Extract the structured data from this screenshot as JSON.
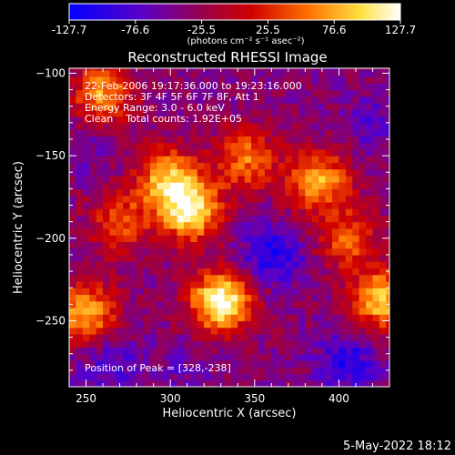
{
  "chart_data": {
    "type": "heatmap",
    "title": "Reconstructed RHESSI Image",
    "xlabel": "Heliocentric X (arcsec)",
    "ylabel": "Heliocentric Y (arcsec)",
    "xlim": [
      240,
      430
    ],
    "ylim": [
      -290,
      -97
    ],
    "xticks": [
      250,
      300,
      350,
      400
    ],
    "yticks": [
      -100,
      -150,
      -200,
      -250
    ],
    "colorbar": {
      "range": [
        -127.7,
        127.7
      ],
      "ticks": [
        "-127.7",
        "-76.6",
        "-25.5",
        "25.5",
        "76.6",
        "127.7"
      ],
      "unit_label": "(photons cm⁻² s⁻¹ asec⁻²)",
      "colors": [
        "#0000ff",
        "#6a00b0",
        "#c00000",
        "#ff8000",
        "#ffff60",
        "#ffffff"
      ]
    },
    "annotations": [
      "22-Feb-2006 19:17:36.000 to 19:23:16.000",
      "Detectors: 3F 4F 5F 6F 7F 8F, Att 1",
      "Energy Range: 3.0 - 6.0 keV",
      "Clean    Total counts: 1.92E+05"
    ],
    "peak_label": "Position of Peak = [328,-238]",
    "peak": [
      328,
      -238
    ],
    "bright_regions": [
      {
        "x": 312,
        "y": -183,
        "value": 110
      },
      {
        "x": 298,
        "y": -163,
        "value": 75
      },
      {
        "x": 330,
        "y": -238,
        "value": 127.7
      },
      {
        "x": 260,
        "y": -112,
        "value": 70
      },
      {
        "x": 388,
        "y": -165,
        "value": 80
      },
      {
        "x": 345,
        "y": -152,
        "value": 55
      },
      {
        "x": 250,
        "y": -245,
        "value": 85
      },
      {
        "x": 425,
        "y": -237,
        "value": 90
      },
      {
        "x": 405,
        "y": -200,
        "value": 45
      },
      {
        "x": 270,
        "y": -190,
        "value": 40
      }
    ],
    "dim_regions": [
      {
        "x": 360,
        "y": -210,
        "value": -110
      },
      {
        "x": 405,
        "y": -275,
        "value": -100
      },
      {
        "x": 265,
        "y": -275,
        "value": -85
      },
      {
        "x": 420,
        "y": -130,
        "value": -70
      },
      {
        "x": 310,
        "y": -280,
        "value": -60
      },
      {
        "x": 250,
        "y": -145,
        "value": -60
      }
    ]
  },
  "footer": {
    "date": "5-May-2022 18:12"
  }
}
